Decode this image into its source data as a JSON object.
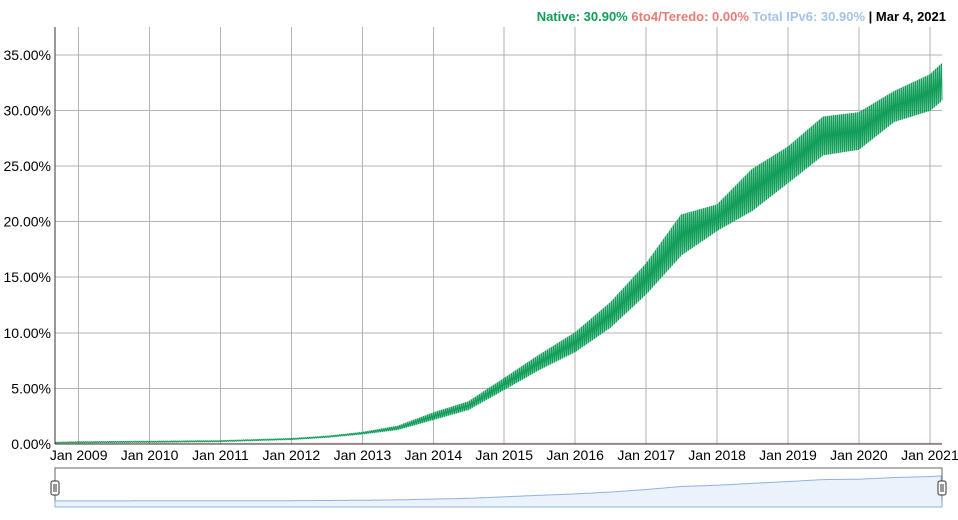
{
  "legend": {
    "native_label": "Native: 30.90%",
    "teredo_label": "6to4/Teredo: 0.00%",
    "total_label": "Total IPv6: 30.90%",
    "date_label": "| Mar 4, 2021"
  },
  "colors": {
    "native": "#0f9d58",
    "teredo": "#e67c73",
    "total": "#a2c4e8",
    "navigator_line": "#8fb3e0",
    "navigator_fill": "#eaf2fb",
    "grid": "#b3b3b3"
  },
  "chart_data": {
    "type": "area",
    "title": "",
    "xlabel": "",
    "ylabel": "",
    "ylim": [
      0,
      37.5
    ],
    "y_ticks": [
      "0.00%",
      "5.00%",
      "10.00%",
      "15.00%",
      "20.00%",
      "25.00%",
      "30.00%",
      "35.00%"
    ],
    "x_ticks": [
      "Jan 2009",
      "Jan 2010",
      "Jan 2011",
      "Jan 2012",
      "Jan 2013",
      "Jan 2014",
      "Jan 2015",
      "Jan 2016",
      "Jan 2017",
      "Jan 2018",
      "Jan 2019",
      "Jan 2020",
      "Jan 2021"
    ],
    "xlim": [
      "2008-09-01",
      "2021-03-04"
    ],
    "grid": true,
    "legend_position": "top-right",
    "series": [
      {
        "name": "Native",
        "x": [
          "2008-09",
          "2009-01",
          "2010-01",
          "2011-01",
          "2012-01",
          "2012-07",
          "2013-01",
          "2013-07",
          "2014-01",
          "2014-07",
          "2015-01",
          "2015-07",
          "2016-01",
          "2016-07",
          "2017-01",
          "2017-07",
          "2018-01",
          "2018-07",
          "2019-01",
          "2019-07",
          "2020-01",
          "2020-07",
          "2021-01",
          "2021-03"
        ],
        "weekday_low": [
          0.1,
          0.12,
          0.16,
          0.22,
          0.4,
          0.6,
          0.9,
          1.3,
          2.2,
          3.1,
          4.9,
          6.7,
          8.3,
          10.5,
          13.5,
          17.0,
          19.2,
          21.0,
          23.5,
          26.0,
          26.5,
          29.0,
          30.0,
          30.9
        ],
        "weekend_high": [
          0.15,
          0.2,
          0.25,
          0.3,
          0.5,
          0.7,
          1.05,
          1.6,
          2.8,
          3.8,
          5.9,
          8.0,
          10.0,
          12.7,
          16.2,
          20.6,
          21.5,
          24.7,
          26.7,
          29.4,
          29.8,
          31.7,
          33.2,
          34.2
        ]
      },
      {
        "name": "6to4/Teredo",
        "x": [
          "2008-09",
          "2021-03"
        ],
        "values": [
          0.0,
          0.0
        ]
      }
    ]
  }
}
